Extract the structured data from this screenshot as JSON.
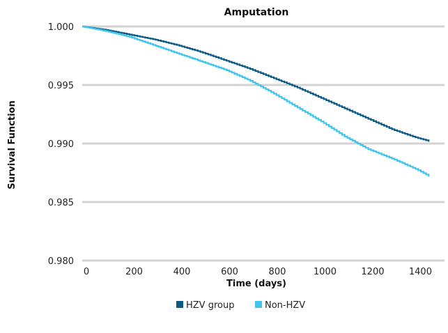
{
  "chart_data": {
    "type": "line",
    "title": "Amputation",
    "xlabel": "Time (days)",
    "ylabel": "Survival Function",
    "xlim": [
      0,
      1460
    ],
    "ylim": [
      0.98,
      1.0
    ],
    "x_ticks": [
      0,
      200,
      400,
      600,
      800,
      1000,
      1200,
      1400
    ],
    "x_tick_labels": [
      "0",
      "200",
      "400",
      "600",
      "800",
      "1000",
      "1200",
      "1400"
    ],
    "y_ticks": [
      0.98,
      0.985,
      0.99,
      0.995,
      1.0
    ],
    "y_tick_labels": [
      "0.980",
      "0.985",
      "0.990",
      "0.995",
      "1.000"
    ],
    "grid": "horizontal",
    "legend_position": "bottom",
    "series": [
      {
        "name": "HZV group",
        "color": "#0b5a86",
        "x": [
          0,
          100,
          200,
          300,
          400,
          500,
          600,
          700,
          800,
          900,
          1000,
          1100,
          1200,
          1300,
          1400,
          1455
        ],
        "y": [
          1.0,
          0.9997,
          0.9993,
          0.9989,
          0.9984,
          0.9978,
          0.9971,
          0.9964,
          0.9956,
          0.9948,
          0.9939,
          0.993,
          0.9921,
          0.9912,
          0.9905,
          0.9902
        ]
      },
      {
        "name": "Non-HZV",
        "color": "#3fc4ec",
        "x": [
          0,
          100,
          200,
          300,
          400,
          500,
          600,
          700,
          800,
          900,
          1000,
          1100,
          1200,
          1300,
          1400,
          1455
        ],
        "y": [
          1.0,
          0.9996,
          0.9991,
          0.9984,
          0.9977,
          0.997,
          0.9963,
          0.9954,
          0.9943,
          0.9931,
          0.9919,
          0.9906,
          0.9895,
          0.9887,
          0.9878,
          0.9872
        ]
      }
    ]
  }
}
